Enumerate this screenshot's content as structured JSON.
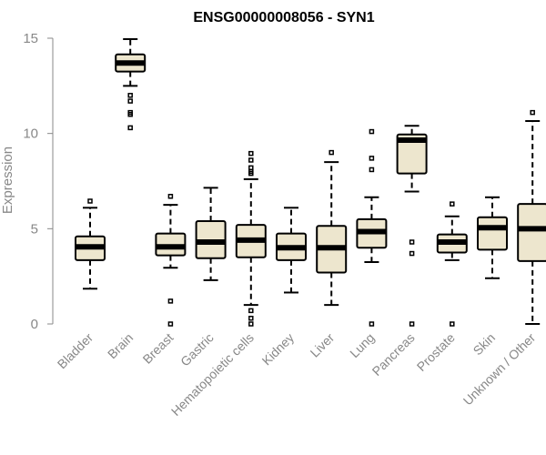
{
  "chart_data": {
    "type": "box",
    "title": "ENSG00000008056 - SYN1",
    "xlabel": "",
    "ylabel": "Expression",
    "ylim": [
      0,
      15
    ],
    "yticks": [
      0,
      5,
      10,
      15
    ],
    "grid": false,
    "box_fill": "#ede6ce",
    "box_stroke": "#000000",
    "categories": [
      "Bladder",
      "Brain",
      "Breast",
      "Gastric",
      "Hematopoietic cells",
      "Kidney",
      "Liver",
      "Lung",
      "Pancreas",
      "Prostate",
      "Skin",
      "Unknown / Other"
    ],
    "boxes": [
      {
        "name": "Bladder",
        "whisker_low": 1.85,
        "q1": 3.35,
        "median": 4.05,
        "q3": 4.6,
        "whisker_high": 6.1,
        "outliers": [
          6.45
        ]
      },
      {
        "name": "Brain",
        "whisker_low": 12.5,
        "q1": 13.25,
        "median": 13.7,
        "q3": 14.15,
        "whisker_high": 14.95,
        "outliers": [
          12.0,
          11.7,
          11.1,
          11.0,
          10.3
        ]
      },
      {
        "name": "Breast",
        "whisker_low": 2.95,
        "q1": 3.6,
        "median": 4.05,
        "q3": 4.75,
        "whisker_high": 6.25,
        "outliers": [
          6.7,
          1.2,
          0.0
        ]
      },
      {
        "name": "Gastric",
        "whisker_low": 2.3,
        "q1": 3.45,
        "median": 4.3,
        "q3": 5.4,
        "whisker_high": 7.15,
        "outliers": []
      },
      {
        "name": "Hematopoietic cells",
        "whisker_low": 1.0,
        "q1": 3.5,
        "median": 4.4,
        "q3": 5.2,
        "whisker_high": 7.6,
        "outliers": [
          8.95,
          8.6,
          8.2,
          8.0,
          7.9,
          0.7,
          0.3,
          0.0
        ]
      },
      {
        "name": "Kidney",
        "whisker_low": 1.65,
        "q1": 3.35,
        "median": 4.0,
        "q3": 4.75,
        "whisker_high": 6.1,
        "outliers": []
      },
      {
        "name": "Liver",
        "whisker_low": 1.0,
        "q1": 2.7,
        "median": 4.0,
        "q3": 5.15,
        "whisker_high": 8.5,
        "outliers": [
          9.0
        ]
      },
      {
        "name": "Lung",
        "whisker_low": 3.25,
        "q1": 4.0,
        "median": 4.85,
        "q3": 5.5,
        "whisker_high": 6.65,
        "outliers": [
          10.1,
          8.7,
          8.1,
          0.0
        ]
      },
      {
        "name": "Pancreas",
        "whisker_low": 6.95,
        "q1": 7.9,
        "median": 9.65,
        "q3": 9.95,
        "whisker_high": 10.4,
        "outliers": [
          4.3,
          3.7,
          0.0
        ]
      },
      {
        "name": "Prostate",
        "whisker_low": 3.35,
        "q1": 3.75,
        "median": 4.3,
        "q3": 4.7,
        "whisker_high": 5.65,
        "outliers": [
          6.3,
          0.0
        ]
      },
      {
        "name": "Skin",
        "whisker_low": 2.4,
        "q1": 3.9,
        "median": 5.05,
        "q3": 5.6,
        "whisker_high": 6.65,
        "outliers": []
      },
      {
        "name": "Unknown / Other",
        "whisker_low": 0.0,
        "q1": 3.3,
        "median": 5.0,
        "q3": 6.3,
        "whisker_high": 10.65,
        "outliers": [
          11.1
        ]
      }
    ]
  }
}
